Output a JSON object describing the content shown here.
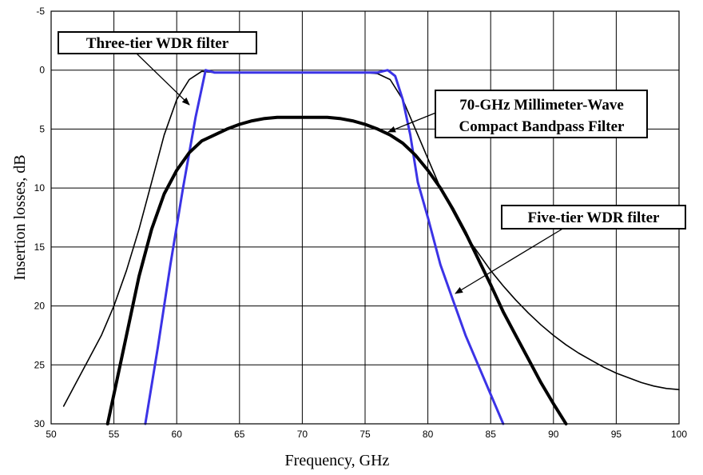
{
  "chart_data": {
    "type": "line",
    "title": "",
    "xlabel": "Frequency, GHz",
    "ylabel": "Insertion losses, dB",
    "xlim": [
      50,
      100
    ],
    "ylim": [
      -5,
      30
    ],
    "y_inverted": true,
    "x_ticks": [
      50,
      55,
      60,
      65,
      70,
      75,
      80,
      85,
      90,
      95,
      100
    ],
    "y_ticks": [
      -5,
      0,
      5,
      10,
      15,
      20,
      25,
      30
    ],
    "grid": true,
    "series": [
      {
        "name": "Three-tier WDR filter",
        "color": "#000000",
        "width": 1.6,
        "x": [
          51,
          52,
          53,
          54,
          55,
          56,
          57,
          58,
          59,
          60,
          61,
          62,
          63,
          64,
          65,
          66,
          67,
          68,
          69,
          70,
          71,
          72,
          73,
          74,
          75,
          76,
          77,
          78,
          79,
          80,
          81,
          82,
          83,
          84,
          85,
          86,
          87,
          88,
          89,
          90,
          91,
          92,
          93,
          94,
          95,
          96,
          97,
          98,
          99,
          100
        ],
        "y": [
          28.5,
          26.5,
          24.5,
          22.5,
          20.0,
          17.0,
          13.5,
          9.5,
          5.5,
          2.5,
          0.8,
          0.1,
          0.2,
          0.2,
          0.2,
          0.2,
          0.2,
          0.2,
          0.2,
          0.2,
          0.2,
          0.2,
          0.2,
          0.2,
          0.2,
          0.3,
          0.8,
          2.5,
          5.0,
          7.5,
          10.0,
          12.0,
          14.0,
          15.5,
          17.0,
          18.3,
          19.5,
          20.6,
          21.6,
          22.5,
          23.3,
          24.0,
          24.6,
          25.2,
          25.7,
          26.1,
          26.5,
          26.8,
          27.0,
          27.1
        ]
      },
      {
        "name": "Five-tier WDR filter",
        "color": "#3b33e6",
        "width": 3,
        "x": [
          57.5,
          58.5,
          59.5,
          60.5,
          61.5,
          62.3,
          63,
          64,
          65,
          66,
          67,
          68,
          69,
          70,
          71,
          72,
          73,
          74,
          75,
          76,
          76.8,
          77.4,
          78,
          78.6,
          79.2,
          80,
          81,
          82,
          83,
          84,
          85,
          86
        ],
        "y": [
          30.0,
          23.5,
          16.5,
          10.0,
          4.0,
          0.0,
          0.2,
          0.2,
          0.2,
          0.2,
          0.2,
          0.2,
          0.2,
          0.2,
          0.2,
          0.2,
          0.2,
          0.2,
          0.2,
          0.2,
          0.0,
          0.5,
          2.5,
          5.5,
          9.5,
          12.5,
          16.5,
          19.5,
          22.5,
          25.0,
          27.5,
          30.0
        ]
      },
      {
        "name": "70-GHz Millimeter-Wave Compact Bandpass Filter",
        "color": "#000000",
        "width": 4,
        "x": [
          54.5,
          55,
          56,
          57,
          58,
          59,
          60,
          61,
          62,
          63,
          64,
          65,
          66,
          67,
          68,
          69,
          70,
          71,
          72,
          73,
          74,
          75,
          76,
          77,
          78,
          79,
          80,
          81,
          82,
          83,
          84,
          85,
          86,
          87,
          88,
          89,
          90,
          91
        ],
        "y": [
          30.0,
          27.5,
          22.5,
          17.5,
          13.5,
          10.5,
          8.5,
          7.0,
          6.0,
          5.5,
          5.0,
          4.6,
          4.3,
          4.1,
          4.0,
          4.0,
          4.0,
          4.0,
          4.0,
          4.1,
          4.3,
          4.6,
          5.0,
          5.5,
          6.2,
          7.2,
          8.5,
          10.0,
          11.8,
          13.8,
          16.0,
          18.2,
          20.5,
          22.5,
          24.5,
          26.5,
          28.3,
          30.0
        ]
      }
    ],
    "annotations": [
      {
        "label": "Three-tier WDR filter",
        "arrow_to": [
          60.5,
          3.0
        ]
      },
      {
        "label_lines": [
          "70-GHz Millimeter-Wave",
          "Compact Bandpass Filter"
        ],
        "arrow_to": [
          77.0,
          5.2
        ]
      },
      {
        "label": "Five-tier WDR filter",
        "arrow_to": [
          82.0,
          19.0
        ]
      }
    ]
  }
}
